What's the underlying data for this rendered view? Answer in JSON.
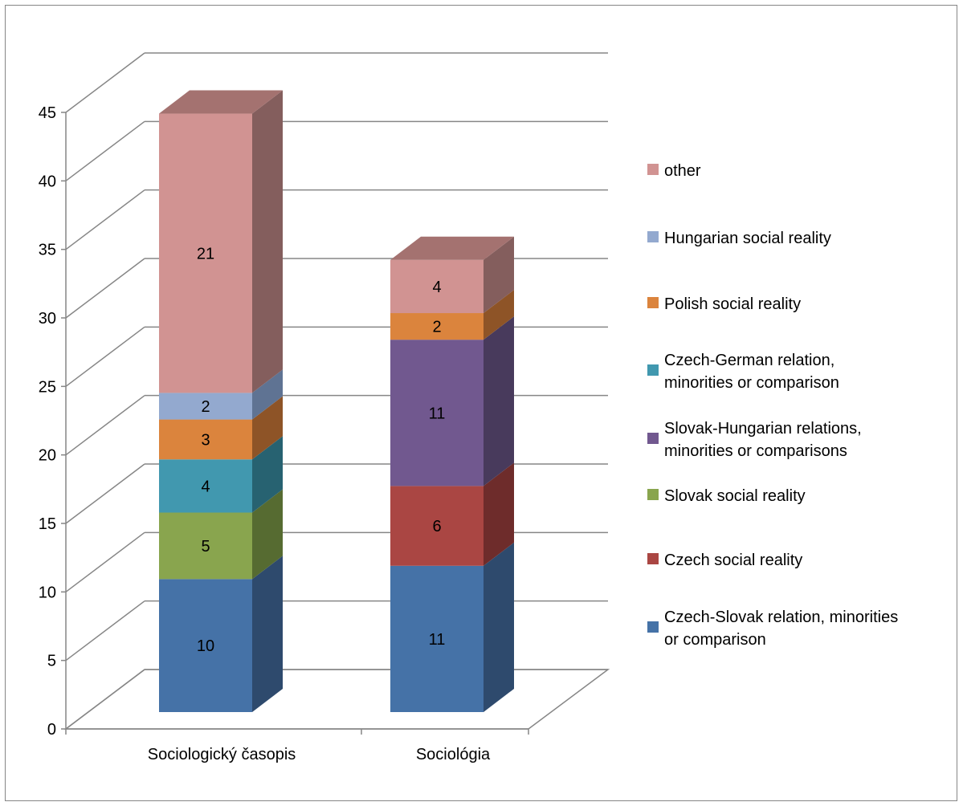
{
  "chart_data": {
    "type": "bar",
    "stacked": true,
    "three_d": true,
    "categories": [
      "Sociologický časopis",
      "Sociológia"
    ],
    "ylim": [
      0,
      45
    ],
    "yticks": [
      0,
      5,
      10,
      15,
      20,
      25,
      30,
      35,
      40,
      45
    ],
    "grid": true,
    "legend_position": "right",
    "series": [
      {
        "name": "Czech-Slovak relation, minorities or comparison",
        "values": [
          10,
          11
        ],
        "color": "#4572A7",
        "side": "#2E4A6D",
        "top": "#6A8EBE"
      },
      {
        "name": "Czech social reality",
        "values": [
          0,
          6
        ],
        "color": "#AA4643",
        "side": "#6E2C2B",
        "top": "#C27573"
      },
      {
        "name": "Slovak social reality",
        "values": [
          5,
          0
        ],
        "color": "#89A54E",
        "side": "#566B31",
        "top": "#A7BF79"
      },
      {
        "name": "Slovak-Hungarian relations, minorities or comparisons",
        "values": [
          0,
          11
        ],
        "color": "#71588F",
        "side": "#483A5C",
        "top": "#9782AD"
      },
      {
        "name": "Czech-German relation, minorities or comparison",
        "values": [
          4,
          0
        ],
        "color": "#4198AF",
        "side": "#276271",
        "top": "#6DB4C8"
      },
      {
        "name": "Polish social reality",
        "values": [
          3,
          2
        ],
        "color": "#DB843D",
        "side": "#8E5427",
        "top": "#E6A26A"
      },
      {
        "name": "Hungarian social reality",
        "values": [
          2,
          0
        ],
        "color": "#93A9CF",
        "side": "#5F7393",
        "top": "#B3C4E0"
      },
      {
        "name": "other",
        "values": [
          21,
          4
        ],
        "color": "#D19392",
        "side": "#845E5D",
        "top": "#A47270"
      }
    ],
    "legend_order": [
      7,
      6,
      5,
      4,
      3,
      2,
      1,
      0
    ]
  }
}
